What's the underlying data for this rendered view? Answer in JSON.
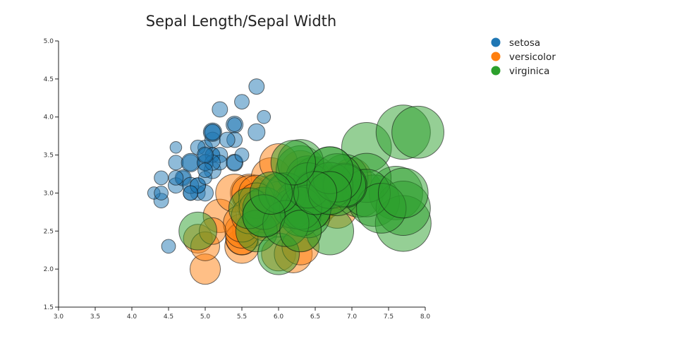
{
  "chart_data": {
    "type": "scatter",
    "title": "Sepal Length/Sepal Width",
    "xlabel": "",
    "ylabel": "",
    "xlim": [
      3.0,
      8.0
    ],
    "ylim": [
      1.5,
      5.0
    ],
    "x_ticks": [
      "3.0",
      "3.5",
      "4.0",
      "4.5",
      "5.0",
      "5.5",
      "6.0",
      "6.5",
      "7.0",
      "7.5",
      "8.0"
    ],
    "y_ticks": [
      "1.5",
      "2.0",
      "2.5",
      "3.0",
      "3.5",
      "4.0",
      "4.5",
      "5.0"
    ],
    "grid": false,
    "legend_position": "top-right",
    "colors": {
      "setosa": "#1f77b4",
      "versicolor": "#ff7f0e",
      "virginica": "#2ca02c"
    },
    "series": [
      {
        "name": "setosa",
        "color": "#1f77b4",
        "x": [
          5.1,
          4.9,
          4.7,
          4.6,
          5.0,
          5.4,
          4.6,
          5.0,
          4.4,
          4.9,
          5.4,
          4.8,
          4.8,
          4.3,
          5.8,
          5.7,
          5.4,
          5.1,
          5.7,
          5.1,
          5.4,
          5.1,
          4.6,
          5.1,
          4.8,
          5.0,
          5.0,
          5.2,
          5.2,
          4.7,
          4.8,
          5.4,
          5.2,
          5.5,
          4.9,
          5.0,
          5.5,
          4.9,
          4.4,
          5.1,
          5.0,
          4.5,
          4.4,
          5.0,
          5.1,
          4.8,
          5.1,
          4.6,
          5.3,
          5.0
        ],
        "y": [
          3.5,
          3.0,
          3.2,
          3.1,
          3.6,
          3.9,
          3.4,
          3.4,
          2.9,
          3.1,
          3.7,
          3.4,
          3.0,
          3.0,
          4.0,
          4.4,
          3.9,
          3.5,
          3.8,
          3.8,
          3.4,
          3.7,
          3.6,
          3.3,
          3.4,
          3.0,
          3.4,
          3.5,
          3.4,
          3.2,
          3.1,
          3.4,
          4.1,
          4.2,
          3.1,
          3.2,
          3.5,
          3.6,
          3.0,
          3.4,
          3.5,
          2.3,
          3.2,
          3.5,
          3.8,
          3.0,
          3.8,
          3.2,
          3.7,
          3.3
        ],
        "size": [
          1.4,
          1.4,
          1.3,
          1.5,
          1.4,
          1.7,
          1.4,
          1.5,
          1.4,
          1.5,
          1.5,
          1.6,
          1.4,
          1.1,
          1.2,
          1.5,
          1.3,
          1.4,
          1.7,
          1.5,
          1.7,
          1.5,
          1.0,
          1.7,
          1.9,
          1.6,
          1.6,
          1.5,
          1.4,
          1.6,
          1.6,
          1.5,
          1.5,
          1.4,
          1.5,
          1.2,
          1.3,
          1.4,
          1.3,
          1.5,
          1.3,
          1.3,
          1.3,
          1.6,
          1.9,
          1.4,
          1.6,
          1.4,
          1.5,
          1.4
        ]
      },
      {
        "name": "versicolor",
        "color": "#ff7f0e",
        "x": [
          7.0,
          6.4,
          6.9,
          5.5,
          6.5,
          5.7,
          6.3,
          4.9,
          6.6,
          5.2,
          5.0,
          5.9,
          6.0,
          6.1,
          5.6,
          6.7,
          5.6,
          5.8,
          6.2,
          5.6,
          5.9,
          6.1,
          6.3,
          6.1,
          6.4,
          6.6,
          6.8,
          6.7,
          6.0,
          5.7,
          5.5,
          5.5,
          5.8,
          6.0,
          5.4,
          6.0,
          6.7,
          6.3,
          5.6,
          5.5,
          5.5,
          6.1,
          5.8,
          5.0,
          5.6,
          5.7,
          5.7,
          6.2,
          5.1,
          5.7
        ],
        "y": [
          3.2,
          3.2,
          3.1,
          2.3,
          2.8,
          2.8,
          3.3,
          2.4,
          2.9,
          2.7,
          2.0,
          3.0,
          2.2,
          2.9,
          2.9,
          3.1,
          3.0,
          2.7,
          2.2,
          2.5,
          3.2,
          2.8,
          2.5,
          2.8,
          2.9,
          3.0,
          2.8,
          3.0,
          2.9,
          2.6,
          2.4,
          2.4,
          2.7,
          2.7,
          3.0,
          3.4,
          3.1,
          2.3,
          3.0,
          2.5,
          2.6,
          3.0,
          2.6,
          2.3,
          2.7,
          3.0,
          2.9,
          2.9,
          2.5,
          2.8
        ],
        "size": [
          4.7,
          4.5,
          4.9,
          4.0,
          4.6,
          4.5,
          4.7,
          3.3,
          4.6,
          3.9,
          3.5,
          4.2,
          4.0,
          4.7,
          3.6,
          4.4,
          4.5,
          4.1,
          4.5,
          3.9,
          4.8,
          4.0,
          4.9,
          4.7,
          4.3,
          4.4,
          4.8,
          5.0,
          4.5,
          3.5,
          3.8,
          3.7,
          3.9,
          5.1,
          4.5,
          4.5,
          4.7,
          4.4,
          4.1,
          4.0,
          4.4,
          4.6,
          4.0,
          3.3,
          4.2,
          4.2,
          4.2,
          4.3,
          3.0,
          4.1
        ]
      },
      {
        "name": "virginica",
        "color": "#2ca02c",
        "x": [
          6.3,
          5.8,
          7.1,
          6.3,
          6.5,
          7.6,
          4.9,
          7.3,
          6.7,
          7.2,
          6.5,
          6.4,
          6.8,
          5.7,
          5.8,
          6.4,
          6.5,
          7.7,
          7.7,
          6.0,
          6.9,
          5.6,
          7.7,
          6.3,
          6.7,
          7.2,
          6.2,
          6.1,
          6.4,
          7.2,
          7.4,
          7.9,
          6.4,
          6.3,
          6.1,
          7.7,
          6.3,
          6.4,
          6.0,
          6.9,
          6.7,
          6.9,
          5.8,
          6.8,
          6.7,
          6.7,
          6.3,
          6.5,
          6.2,
          5.9
        ],
        "y": [
          3.3,
          2.7,
          3.0,
          2.9,
          3.0,
          3.0,
          2.5,
          2.9,
          2.5,
          3.6,
          3.2,
          2.7,
          3.0,
          2.5,
          2.8,
          3.2,
          3.0,
          3.8,
          2.6,
          2.2,
          3.2,
          2.8,
          2.8,
          2.7,
          3.3,
          3.2,
          2.8,
          3.0,
          2.8,
          3.0,
          2.8,
          3.8,
          2.8,
          2.8,
          2.6,
          3.0,
          3.4,
          3.1,
          3.0,
          3.1,
          3.1,
          3.1,
          2.7,
          3.2,
          3.3,
          3.0,
          2.5,
          3.0,
          3.4,
          3.0
        ],
        "size": [
          6.0,
          5.1,
          5.9,
          5.6,
          5.8,
          6.6,
          4.5,
          6.3,
          5.8,
          6.1,
          5.1,
          5.3,
          5.5,
          5.0,
          5.1,
          5.3,
          5.5,
          6.7,
          6.9,
          5.0,
          5.7,
          4.9,
          6.7,
          4.9,
          5.7,
          6.0,
          4.8,
          4.9,
          5.6,
          5.8,
          6.1,
          6.4,
          5.6,
          5.1,
          5.6,
          6.1,
          5.6,
          5.5,
          4.8,
          5.4,
          5.6,
          5.1,
          5.1,
          5.9,
          5.7,
          5.2,
          5.0,
          5.2,
          5.4,
          5.1
        ]
      }
    ]
  }
}
